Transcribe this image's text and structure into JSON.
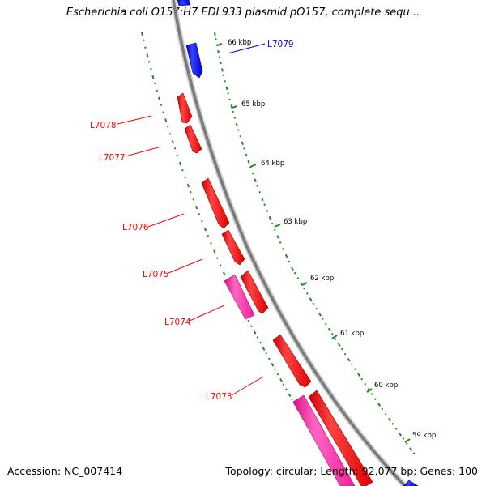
{
  "title": "Escherichia coli O157:H7 EDL933 plasmid pO157, complete sequ...",
  "footer": {
    "accession": "Accession: NC_007414",
    "summary": "Topology: circular; Length: 92,077 bp; Genes: 100"
  },
  "colors": {
    "background": "#ffffff",
    "backbone": "#808080",
    "tick": "#1e8c1e",
    "gene_red": "#ff0000",
    "gene_blue": "#0000ff",
    "gene_pink": "#ff33aa"
  },
  "ticks": [
    {
      "label": "66 kbp"
    },
    {
      "label": "65 kbp"
    },
    {
      "label": "64 kbp"
    },
    {
      "label": "63 kbp"
    },
    {
      "label": "62 kbp"
    },
    {
      "label": "61 kbp"
    },
    {
      "label": "60 kbp"
    },
    {
      "label": "59 kbp"
    }
  ],
  "gene_labels": [
    {
      "name": "L7079",
      "color": "#0000ff"
    },
    {
      "name": "L7078",
      "color": "#ff0000"
    },
    {
      "name": "L7077",
      "color": "#ff0000"
    },
    {
      "name": "L7076",
      "color": "#ff0000"
    },
    {
      "name": "L7075",
      "color": "#ff0000"
    },
    {
      "name": "L7074",
      "color": "#ff0000"
    },
    {
      "name": "L7073",
      "color": "#ff0000"
    }
  ]
}
